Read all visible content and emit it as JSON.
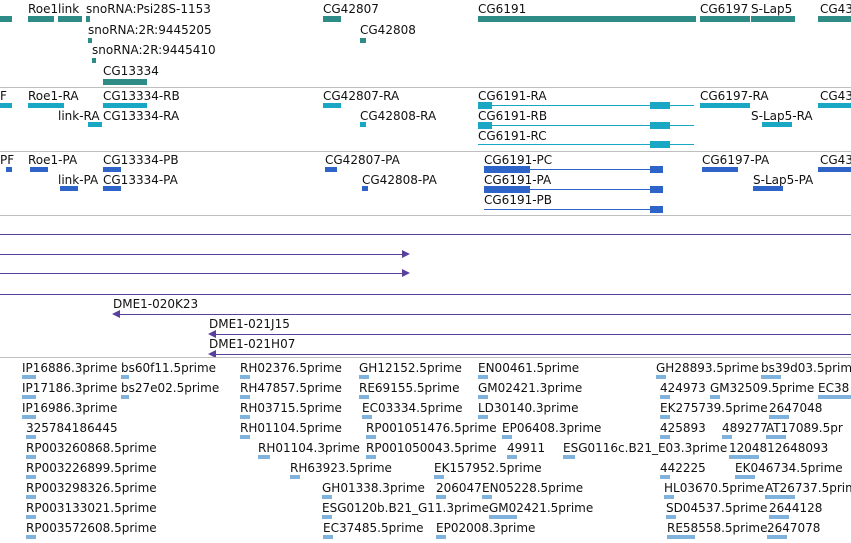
{
  "tracks": {
    "genes": {
      "labels": [
        "Roe1",
        "link",
        "snoRNA:Psi28S-1153",
        "snoRNA:2R:9445205",
        "snoRNA:2R:9445410",
        "CG13334",
        "CG42807",
        "CG42808",
        "CG6191",
        "CG6197",
        "S-Lap5",
        "CG43"
      ],
      "color": "#2e8b86"
    },
    "transcripts_ra": {
      "labels": [
        "F",
        "Roe1-RA",
        "link-RA",
        "CG13334-RB",
        "CG13334-RA",
        "CG42807-RA",
        "CG42808-RA",
        "CG6191-RA",
        "CG6191-RB",
        "CG6191-RC",
        "CG6197-RA",
        "S-Lap5-RA",
        "CG43"
      ],
      "color": "#1aa7c4"
    },
    "proteins_pa": {
      "labels": [
        "PF",
        "Roe1-PA",
        "link-PA",
        "CG13334-PB",
        "CG13334-PA",
        "CG42807-PA",
        "CG42808-PA",
        "CG6191-PC",
        "CG6191-PA",
        "CG6191-PB",
        "CG6197-PA",
        "S-Lap5-PA",
        "CG43"
      ],
      "color": "#2e63c8"
    },
    "clones": {
      "labels": [
        "DME1-020K23",
        "DME1-021J15",
        "DME1-021H07"
      ],
      "color": "#5b3f9c"
    },
    "ests": {
      "labels": [
        "IP16886.3prime",
        "bs60f11.5prime",
        "RH02376.5prime",
        "GH12152.5prime",
        "EN00461.5prime",
        "GH28893.5prime",
        "bs39d03.5prime",
        "IP17186.3prime",
        "bs27e02.5prime",
        "RH47857.5prime",
        "RE69155.5prime",
        "GM02421.3prime",
        "424973",
        "GM32509.5prime",
        "EC38",
        "IP16986.3prime",
        "RH03715.5prime",
        "EC03334.5prime",
        "LD30140.3prime",
        "EK275739.5prime",
        "2647048",
        "325784186445",
        "RH01104.5prime",
        "RP001051476.5prime",
        "EP06408.3prime",
        "425893",
        "489277",
        "AT17089.5pr",
        "RP003260868.5prime",
        "RH01104.3prime",
        "RP001050043.5prime",
        "49911",
        "ESG0116c.B21_E03.3prime",
        "1204812648093",
        "RP003226899.5prime",
        "RH63923.5prime",
        "EK157952.5prime",
        "442225",
        "EK046734.5prime",
        "RP003298326.5prime",
        "GH01338.3prime",
        "206047",
        "EN05228.5prime",
        "HL03670.5prime",
        "AT26737.5prime",
        "RP003133021.5prime",
        "ESG0120b.B21_G11.3prime",
        "GM02421.5prime",
        "SD04537.5prime",
        "2644128",
        "RP003572608.5prime",
        "EC37485.5prime",
        "EP02008.3prime",
        "RE58558.5prime",
        "2647078"
      ],
      "color": "#7fb2dc"
    }
  }
}
